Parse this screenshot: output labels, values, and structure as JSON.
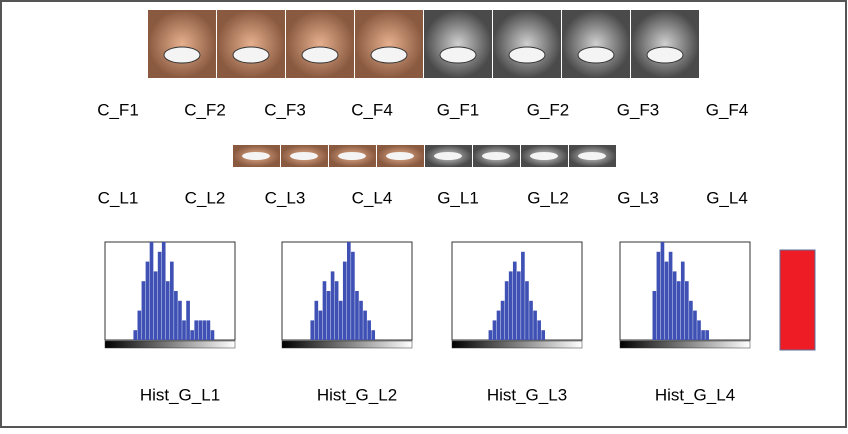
{
  "faces": {
    "labels": [
      "C_F1",
      "C_F2",
      "C_F3",
      "C_F4",
      "G_F1",
      "G_F2",
      "G_F3",
      "G_F4"
    ]
  },
  "lips": {
    "labels": [
      "C_L1",
      "C_L2",
      "C_L3",
      "C_L4",
      "G_L1",
      "G_L2",
      "G_L3",
      "G_L4"
    ]
  },
  "histograms": [
    {
      "label": "Hist_G_L1",
      "color": "#3f51b5",
      "counts": [
        0,
        0,
        0,
        0,
        0,
        0,
        0,
        10,
        30,
        60,
        80,
        100,
        70,
        90,
        100,
        60,
        80,
        50,
        40,
        20,
        40,
        10,
        20,
        20,
        20,
        20,
        10,
        0,
        0,
        0,
        0,
        0
      ]
    },
    {
      "label": "Hist_G_L2",
      "color": "#3f51b5",
      "counts": [
        0,
        0,
        0,
        0,
        0,
        0,
        0,
        20,
        40,
        30,
        60,
        50,
        70,
        60,
        40,
        80,
        100,
        90,
        50,
        40,
        30,
        20,
        10,
        0,
        0,
        0,
        0,
        0,
        0,
        0,
        0,
        0
      ]
    },
    {
      "label": "Hist_G_L3",
      "color": "#3f51b5",
      "counts": [
        0,
        0,
        0,
        0,
        0,
        0,
        0,
        0,
        0,
        10,
        20,
        30,
        40,
        60,
        70,
        80,
        70,
        90,
        60,
        40,
        30,
        20,
        10,
        0,
        0,
        0,
        0,
        0,
        0,
        0,
        0,
        0
      ]
    },
    {
      "label": "Hist_G_L4",
      "color": "#3f51b5",
      "counts": [
        0,
        0,
        0,
        0,
        0,
        0,
        0,
        0,
        50,
        90,
        100,
        80,
        90,
        70,
        60,
        80,
        60,
        40,
        30,
        20,
        10,
        10,
        0,
        0,
        0,
        0,
        0,
        0,
        0,
        0,
        0,
        0
      ]
    }
  ],
  "swatch_color": "#ee1c25"
}
